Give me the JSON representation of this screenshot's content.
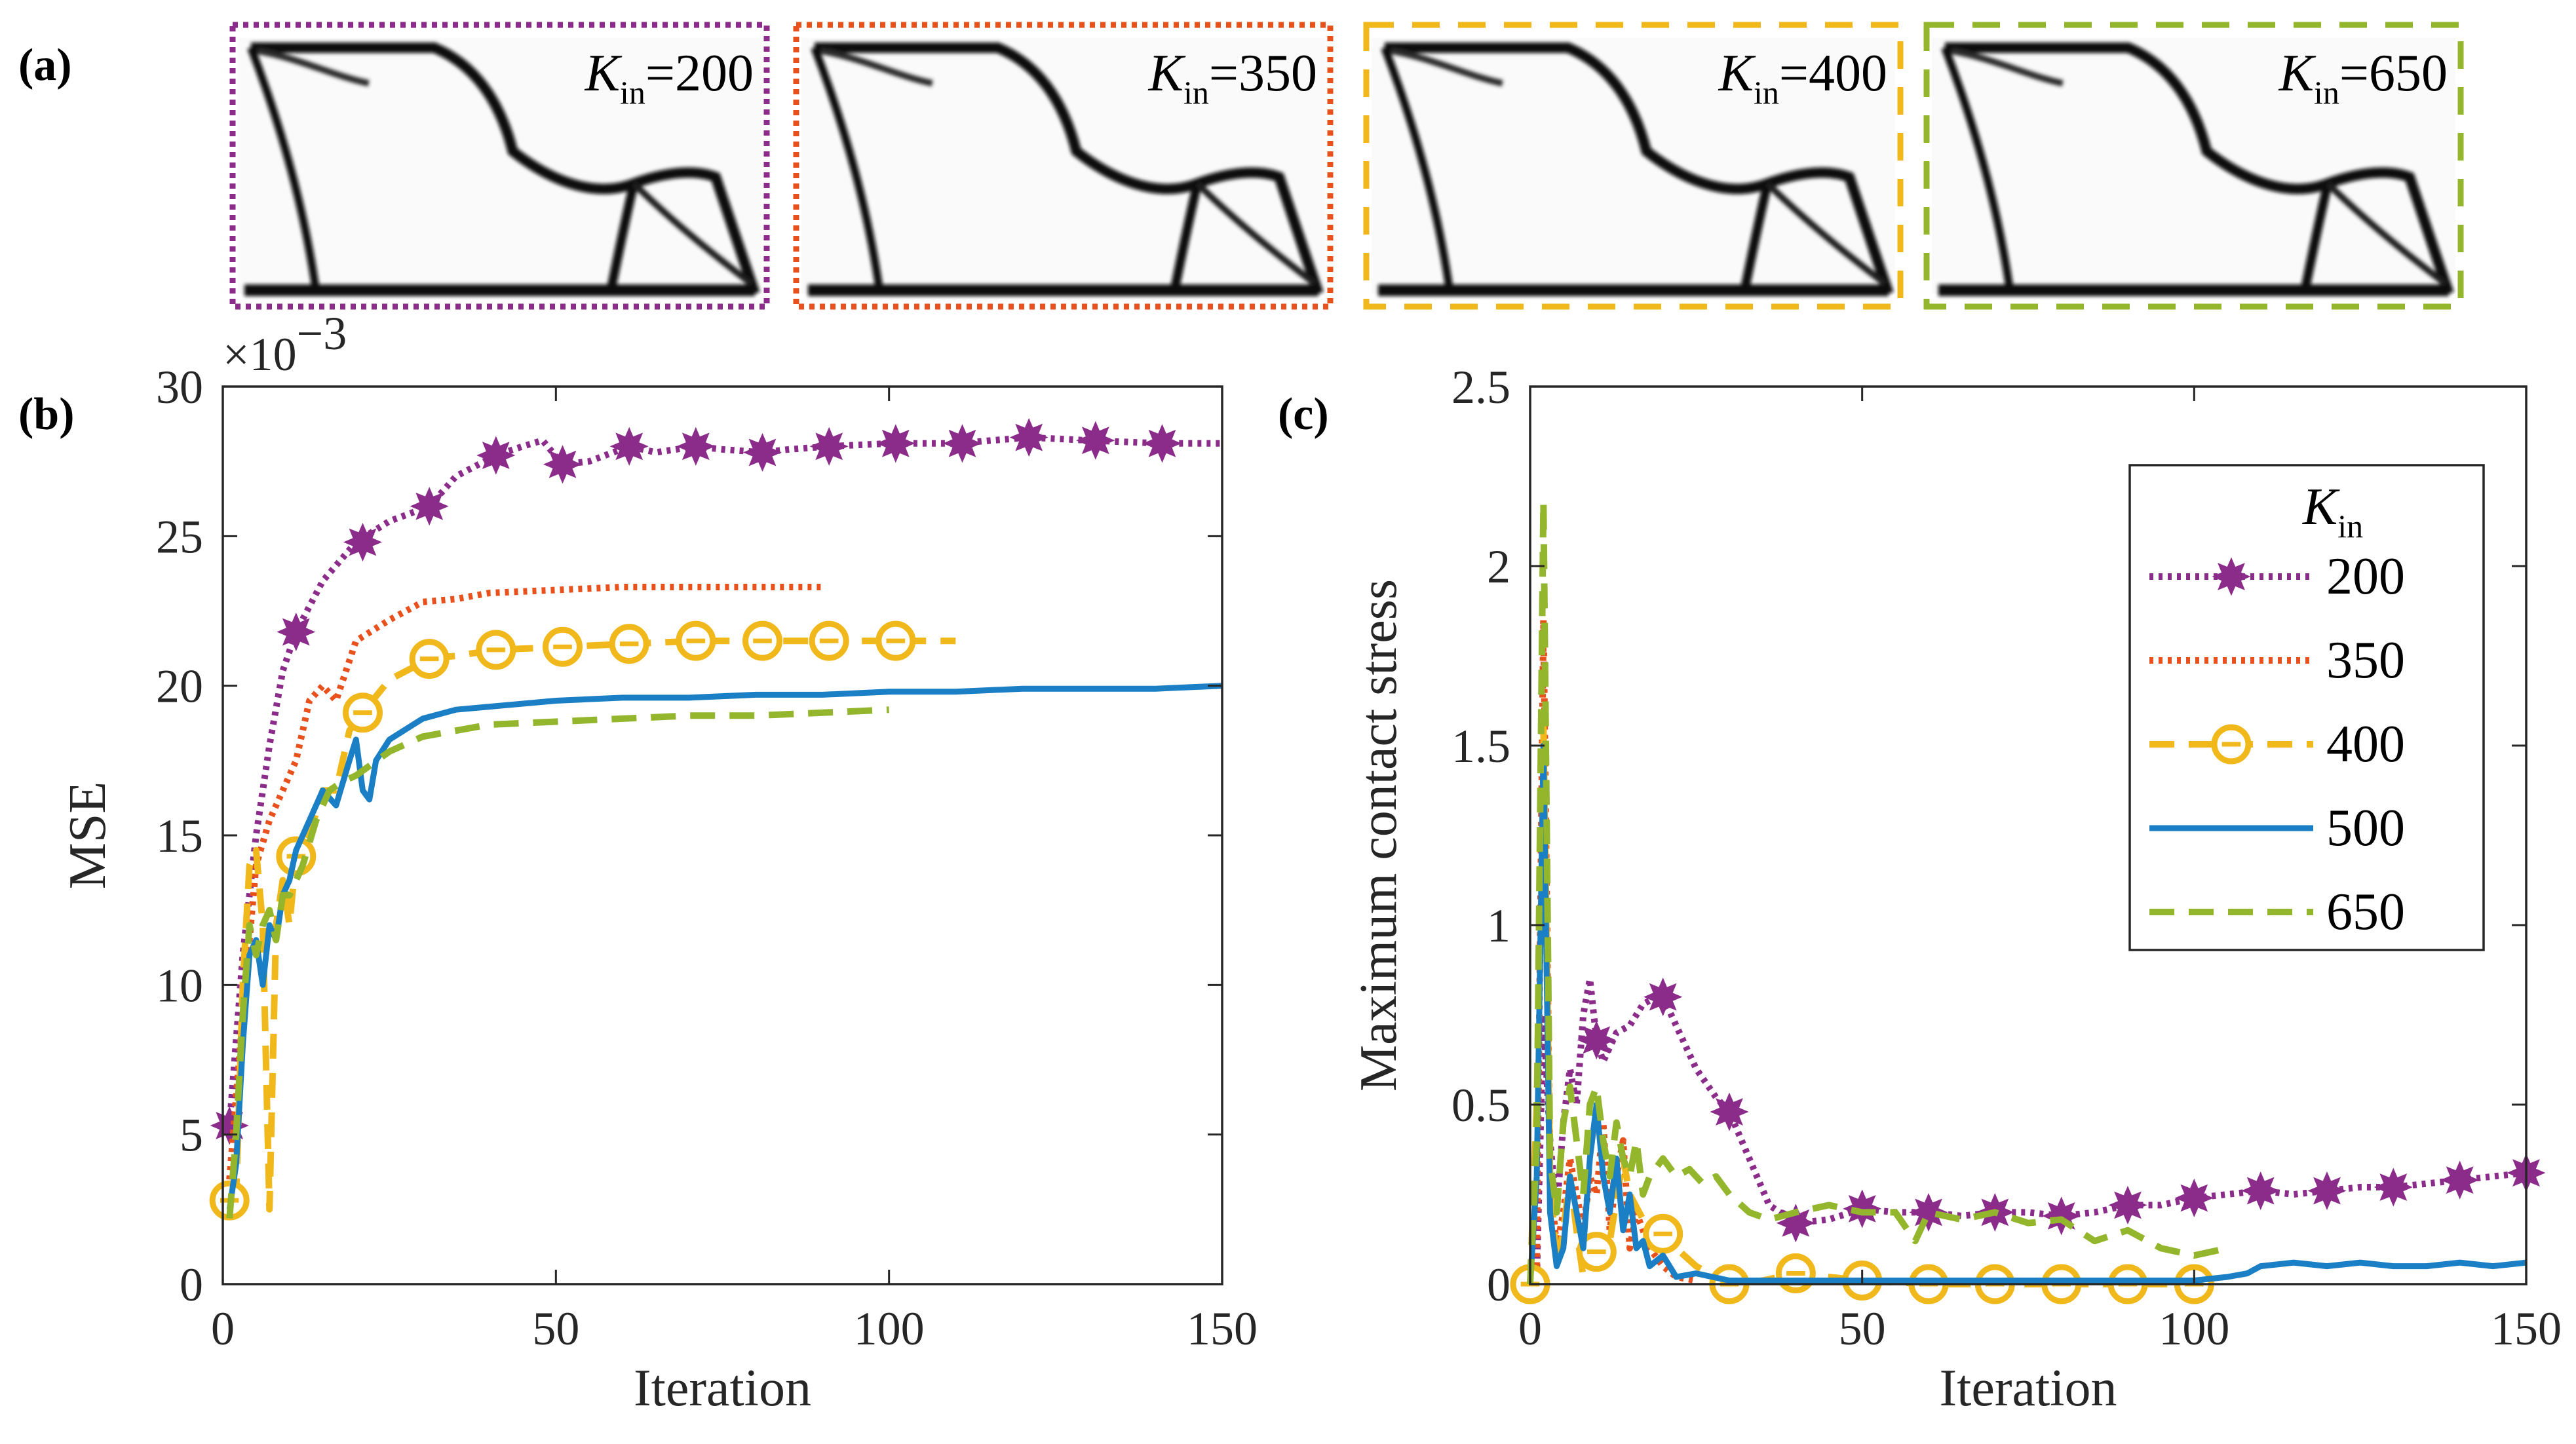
{
  "figure_title": "",
  "panel_labels": {
    "a": "(a)",
    "b": "(b)",
    "c": "(c)"
  },
  "thumbnails": [
    {
      "label_k": "K",
      "label_sub": "in",
      "label_eq": "=200",
      "value": 200,
      "color": "#8B2C8B",
      "border": "dotted"
    },
    {
      "label_k": "K",
      "label_sub": "in",
      "label_eq": "=350",
      "value": 350,
      "color": "#E8501C",
      "border": "dotted"
    },
    {
      "label_k": "K",
      "label_sub": "in",
      "label_eq": "=400",
      "value": 400,
      "color": "#F0B81A",
      "border": "dashed"
    },
    {
      "label_k": "K",
      "label_sub": "in",
      "label_eq": "=650",
      "value": 650,
      "color": "#93B62C",
      "border": "dashed"
    }
  ],
  "colors": {
    "k200": "#8B2C8B",
    "k350": "#E8501C",
    "k400": "#F0B81A",
    "k500": "#1A7FC4",
    "k650": "#93B62C",
    "axis": "#262626"
  },
  "chart_data": [
    {
      "id": "b",
      "type": "line",
      "title": "",
      "xlabel": "Iteration",
      "ylabel": "MSE",
      "y_exponent_label": "×10",
      "y_exponent_power": "−3",
      "xlim": [
        0,
        150
      ],
      "ylim": [
        0,
        30
      ],
      "xticks": [
        0,
        50,
        100,
        150
      ],
      "yticks": [
        0,
        5,
        10,
        15,
        20,
        25,
        30
      ],
      "grid": false,
      "series": [
        {
          "name": "200",
          "style": "dotted",
          "marker": "star",
          "x": [
            1,
            3,
            5,
            7,
            9,
            11,
            15,
            20,
            25,
            31,
            35,
            41,
            45,
            48,
            51,
            55,
            61,
            65,
            71,
            75,
            81,
            85,
            91,
            100,
            110,
            121,
            130,
            141,
            150
          ],
          "y": [
            5.3,
            11,
            15,
            18,
            20.5,
            21.8,
            23.5,
            24.8,
            25.5,
            26,
            27,
            27.7,
            28,
            28.2,
            27.4,
            27.5,
            28,
            27.8,
            28,
            27.9,
            27.8,
            27.9,
            28,
            28.1,
            28.1,
            28.3,
            28.2,
            28.1,
            28.1
          ],
          "marker_x": [
            1,
            11,
            21,
            31,
            41,
            51,
            61,
            71,
            81,
            91,
            101,
            111,
            121,
            131,
            141
          ],
          "marker_y": [
            5.3,
            21.8,
            24.8,
            26,
            27.7,
            27.4,
            28,
            28,
            27.8,
            28,
            28.1,
            28.1,
            28.3,
            28.2,
            28.1
          ]
        },
        {
          "name": "350",
          "style": "dotted",
          "marker": "none",
          "x": [
            1,
            3,
            5,
            7,
            9,
            11,
            13,
            15,
            17,
            20,
            25,
            30,
            35,
            40,
            50,
            60,
            70,
            80,
            90
          ],
          "y": [
            3.5,
            9,
            14,
            15.5,
            16.5,
            17.5,
            19.5,
            20,
            19.5,
            21.5,
            22.2,
            22.8,
            22.9,
            23.1,
            23.2,
            23.3,
            23.3,
            23.3,
            23.3
          ]
        },
        {
          "name": "400",
          "style": "dashed",
          "marker": "circle",
          "x": [
            1,
            2,
            3,
            4,
            5,
            6,
            7,
            8,
            9,
            10,
            11,
            13,
            15,
            17,
            19,
            21,
            25,
            31,
            35,
            41,
            51,
            61,
            71,
            81,
            91,
            101,
            110
          ],
          "y": [
            2.8,
            3,
            10,
            14,
            14.5,
            12,
            2.5,
            12,
            13.5,
            12,
            14.3,
            15,
            16.5,
            16.5,
            18.5,
            19.1,
            20.2,
            20.9,
            21,
            21.2,
            21.3,
            21.4,
            21.5,
            21.5,
            21.5,
            21.5,
            21.5
          ],
          "marker_x": [
            1,
            11,
            21,
            31,
            41,
            51,
            61,
            71,
            81,
            91,
            101
          ],
          "marker_y": [
            2.8,
            14.3,
            19.1,
            20.9,
            21.2,
            21.3,
            21.4,
            21.5,
            21.5,
            21.5,
            21.5
          ]
        },
        {
          "name": "500",
          "style": "solid",
          "marker": "none",
          "x": [
            1,
            2,
            3,
            4,
            5,
            6,
            7,
            8,
            9,
            10,
            11,
            12,
            13,
            15,
            17,
            19,
            20,
            21,
            22,
            23,
            25,
            30,
            35,
            40,
            50,
            60,
            70,
            80,
            90,
            100,
            110,
            120,
            130,
            140,
            150
          ],
          "y": [
            2.5,
            4,
            8,
            11,
            11.5,
            10,
            12,
            11.5,
            13,
            13.5,
            14.5,
            15,
            15.5,
            16.5,
            16,
            17.5,
            18.2,
            16.5,
            16.2,
            17.5,
            18.2,
            18.9,
            19.2,
            19.3,
            19.5,
            19.6,
            19.6,
            19.7,
            19.7,
            19.8,
            19.8,
            19.9,
            19.9,
            19.9,
            20
          ]
        },
        {
          "name": "650",
          "style": "dashed",
          "marker": "none",
          "x": [
            1,
            2,
            3,
            4,
            5,
            6,
            7,
            8,
            9,
            10,
            12,
            14,
            16,
            18,
            20,
            25,
            30,
            35,
            40,
            50,
            60,
            70,
            80,
            90,
            100
          ],
          "y": [
            2.2,
            5,
            9,
            12,
            11,
            12,
            12.5,
            11.5,
            13,
            13,
            14,
            15.5,
            16.5,
            16.8,
            17,
            17.8,
            18.3,
            18.5,
            18.7,
            18.8,
            18.9,
            19,
            19,
            19.1,
            19.2
          ]
        }
      ]
    },
    {
      "id": "c",
      "type": "line",
      "title": "",
      "xlabel": "Iteration",
      "ylabel": "Maximum contact stress",
      "xlim": [
        0,
        150
      ],
      "ylim": [
        0,
        2.5
      ],
      "xticks": [
        0,
        50,
        100,
        150
      ],
      "yticks": [
        0,
        0.5,
        1,
        1.5,
        2,
        2.5
      ],
      "ytick_labels": [
        "0",
        "0.5",
        "1",
        "1.5",
        "2",
        "2.5"
      ],
      "grid": false,
      "legend": {
        "title_k": "K",
        "title_sub": "in",
        "position": "top-right"
      },
      "series": [
        {
          "name": "200",
          "style": "dotted",
          "marker": "star",
          "x": [
            1,
            2,
            3,
            4,
            5,
            6,
            7,
            8,
            9,
            10,
            11,
            13,
            15,
            17,
            19,
            20,
            22,
            25,
            28,
            30,
            33,
            36,
            40,
            45,
            50,
            55,
            60,
            65,
            70,
            75,
            80,
            85,
            90,
            95,
            100,
            105,
            110,
            115,
            120,
            125,
            130,
            135,
            140,
            145,
            150
          ],
          "y": [
            0.02,
            0.75,
            0.4,
            0.2,
            0.45,
            0.6,
            0.5,
            0.75,
            0.85,
            0.68,
            0.62,
            0.7,
            0.72,
            0.78,
            0.8,
            0.8,
            0.72,
            0.6,
            0.52,
            0.48,
            0.35,
            0.22,
            0.17,
            0.18,
            0.21,
            0.2,
            0.2,
            0.19,
            0.2,
            0.2,
            0.19,
            0.2,
            0.22,
            0.22,
            0.24,
            0.25,
            0.26,
            0.25,
            0.26,
            0.27,
            0.27,
            0.28,
            0.29,
            0.3,
            0.31
          ],
          "marker_x": [
            0,
            10,
            20,
            30,
            40,
            50,
            60,
            70,
            80,
            90,
            100,
            110,
            120,
            130,
            140,
            150
          ],
          "marker_y": [
            0.0,
            0.68,
            0.8,
            0.48,
            0.17,
            0.21,
            0.2,
            0.2,
            0.19,
            0.22,
            0.24,
            0.26,
            0.26,
            0.27,
            0.29,
            0.31
          ]
        },
        {
          "name": "350",
          "style": "dotted",
          "marker": "none",
          "x": [
            1,
            2,
            3,
            4,
            5,
            6,
            7,
            8,
            9,
            10,
            11,
            12,
            13,
            14,
            15,
            16,
            18,
            20,
            22,
            25
          ],
          "y": [
            0.05,
            1.85,
            0.3,
            0.1,
            0.2,
            0.35,
            0.25,
            0.15,
            0.3,
            0.25,
            0.45,
            0.15,
            0.3,
            0.4,
            0.1,
            0.2,
            0.1,
            0.05,
            0.02,
            0.01
          ]
        },
        {
          "name": "400",
          "style": "dashed",
          "marker": "circle",
          "x": [
            0,
            1,
            2,
            3,
            4,
            5,
            6,
            7,
            8,
            10,
            12,
            14,
            15,
            17,
            19,
            20,
            22,
            25,
            30,
            35,
            40,
            50,
            60,
            70,
            80,
            90,
            100
          ],
          "y": [
            0.0,
            0.5,
            1.55,
            0.3,
            0.05,
            0.15,
            0.3,
            0.15,
            0.02,
            0.09,
            0.12,
            0.35,
            0.25,
            0.18,
            0.15,
            0.14,
            0.1,
            0.05,
            0.0,
            0.01,
            0.03,
            0.01,
            0.0,
            0.0,
            0.0,
            0.0,
            0.0
          ],
          "marker_x": [
            0,
            10,
            20,
            30,
            40,
            50,
            60,
            70,
            80,
            90,
            100
          ],
          "marker_y": [
            0.0,
            0.09,
            0.14,
            0.0,
            0.03,
            0.01,
            0.0,
            0.0,
            0.0,
            0.0,
            0.0
          ]
        },
        {
          "name": "500",
          "style": "solid",
          "marker": "none",
          "x": [
            0,
            1,
            2,
            3,
            4,
            5,
            6,
            7,
            8,
            9,
            10,
            11,
            12,
            13,
            14,
            15,
            16,
            17,
            18,
            20,
            22,
            25,
            30,
            40,
            50,
            60,
            70,
            80,
            90,
            100,
            105,
            108,
            110,
            115,
            120,
            125,
            130,
            135,
            140,
            145,
            150
          ],
          "y": [
            0.0,
            0.3,
            1.5,
            0.2,
            0.05,
            0.1,
            0.3,
            0.2,
            0.1,
            0.35,
            0.5,
            0.3,
            0.2,
            0.35,
            0.15,
            0.25,
            0.1,
            0.12,
            0.05,
            0.08,
            0.02,
            0.03,
            0.01,
            0.01,
            0.01,
            0.01,
            0.01,
            0.01,
            0.01,
            0.01,
            0.02,
            0.03,
            0.05,
            0.06,
            0.05,
            0.06,
            0.05,
            0.05,
            0.06,
            0.05,
            0.06
          ]
        },
        {
          "name": "650",
          "style": "dashed",
          "marker": "none",
          "x": [
            0,
            1,
            2,
            3,
            4,
            5,
            6,
            7,
            8,
            9,
            10,
            11,
            12,
            13,
            14,
            15,
            16,
            17,
            18,
            20,
            22,
            24,
            26,
            28,
            30,
            33,
            36,
            40,
            45,
            50,
            55,
            58,
            60,
            65,
            70,
            75,
            80,
            85,
            90,
            95,
            100,
            105
          ],
          "y": [
            0.0,
            0.4,
            2.18,
            0.35,
            0.2,
            0.45,
            0.55,
            0.4,
            0.25,
            0.5,
            0.55,
            0.4,
            0.3,
            0.45,
            0.35,
            0.3,
            0.4,
            0.25,
            0.3,
            0.35,
            0.3,
            0.32,
            0.28,
            0.3,
            0.25,
            0.2,
            0.18,
            0.2,
            0.22,
            0.2,
            0.2,
            0.12,
            0.2,
            0.18,
            0.2,
            0.17,
            0.18,
            0.12,
            0.15,
            0.1,
            0.08,
            0.1
          ]
        }
      ]
    }
  ]
}
